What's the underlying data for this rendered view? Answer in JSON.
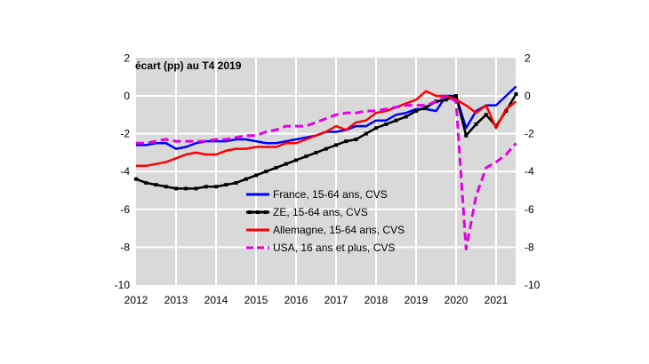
{
  "chart_data": {
    "type": "line",
    "title": "écart (pp) au T4 2019",
    "xlim": [
      2012,
      2021.5
    ],
    "ylim": [
      -10,
      2
    ],
    "x_ticks": [
      "2012",
      "2013",
      "2014",
      "2015",
      "2016",
      "2017",
      "2018",
      "2019",
      "2020",
      "2021"
    ],
    "y_ticks": [
      2,
      0,
      -2,
      -4,
      -6,
      -8,
      -10
    ],
    "y_ticks_right": [
      2,
      0,
      -2,
      -4,
      -6,
      -8,
      -10
    ],
    "grid": true,
    "legend_placement": "center",
    "background_color": "#d9d9d9",
    "x_start": 2012,
    "x_step": 0.25,
    "series": [
      {
        "name": "France, 15-64 ans, CVS",
        "color": "#0000ff",
        "style": "solid",
        "values": [
          -2.6,
          -2.6,
          -2.5,
          -2.5,
          -2.8,
          -2.7,
          -2.5,
          -2.4,
          -2.4,
          -2.4,
          -2.3,
          -2.3,
          -2.4,
          -2.5,
          -2.5,
          -2.4,
          -2.3,
          -2.2,
          -2.1,
          -1.9,
          -1.9,
          -1.8,
          -1.6,
          -1.6,
          -1.3,
          -1.3,
          -1.0,
          -0.9,
          -0.7,
          -0.7,
          -0.8,
          0.0,
          0.0,
          -1.7,
          -0.8,
          -0.5,
          -0.5,
          0.0,
          0.5
        ]
      },
      {
        "name": "ZE, 15-64 ans, CVS",
        "color": "#000000",
        "style": "solid-markers",
        "values": [
          -4.4,
          -4.6,
          -4.7,
          -4.8,
          -4.9,
          -4.9,
          -4.9,
          -4.8,
          -4.8,
          -4.7,
          -4.6,
          -4.4,
          -4.2,
          -4.0,
          -3.8,
          -3.6,
          -3.4,
          -3.2,
          -3.0,
          -2.8,
          -2.6,
          -2.4,
          -2.3,
          -2.0,
          -1.7,
          -1.5,
          -1.3,
          -1.1,
          -0.8,
          -0.6,
          -0.3,
          -0.2,
          0.0,
          -2.1,
          -1.5,
          -1.0,
          -1.6,
          -0.8,
          0.1
        ]
      },
      {
        "name": "Allemagne, 15-64 ans, CVS",
        "color": "#ff0000",
        "style": "solid",
        "values": [
          -3.7,
          -3.7,
          -3.6,
          -3.5,
          -3.3,
          -3.1,
          -3.0,
          -3.1,
          -3.1,
          -2.9,
          -2.8,
          -2.8,
          -2.7,
          -2.7,
          -2.7,
          -2.5,
          -2.5,
          -2.3,
          -2.1,
          -1.9,
          -1.6,
          -1.8,
          -1.4,
          -1.3,
          -0.9,
          -0.8,
          -0.6,
          -0.4,
          -0.2,
          0.25,
          0.0,
          0.0,
          -0.2,
          -0.5,
          -0.9,
          -0.5,
          -1.7,
          -0.7,
          -0.3
        ]
      },
      {
        "name": "USA, 16 ans et plus, CVS",
        "color": "#e100e1",
        "style": "dashed",
        "values": [
          -2.5,
          -2.5,
          -2.4,
          -2.3,
          -2.4,
          -2.4,
          -2.4,
          -2.4,
          -2.3,
          -2.3,
          -2.2,
          -2.1,
          -2.1,
          -1.9,
          -1.8,
          -1.6,
          -1.6,
          -1.6,
          -1.4,
          -1.2,
          -1.0,
          -0.9,
          -0.9,
          -0.8,
          -0.8,
          -0.7,
          -0.6,
          -0.5,
          -0.5,
          -0.5,
          -0.3,
          0.0,
          -0.3,
          -8.1,
          -5.3,
          -3.8,
          -3.5,
          -3.1,
          -2.5
        ]
      }
    ]
  }
}
